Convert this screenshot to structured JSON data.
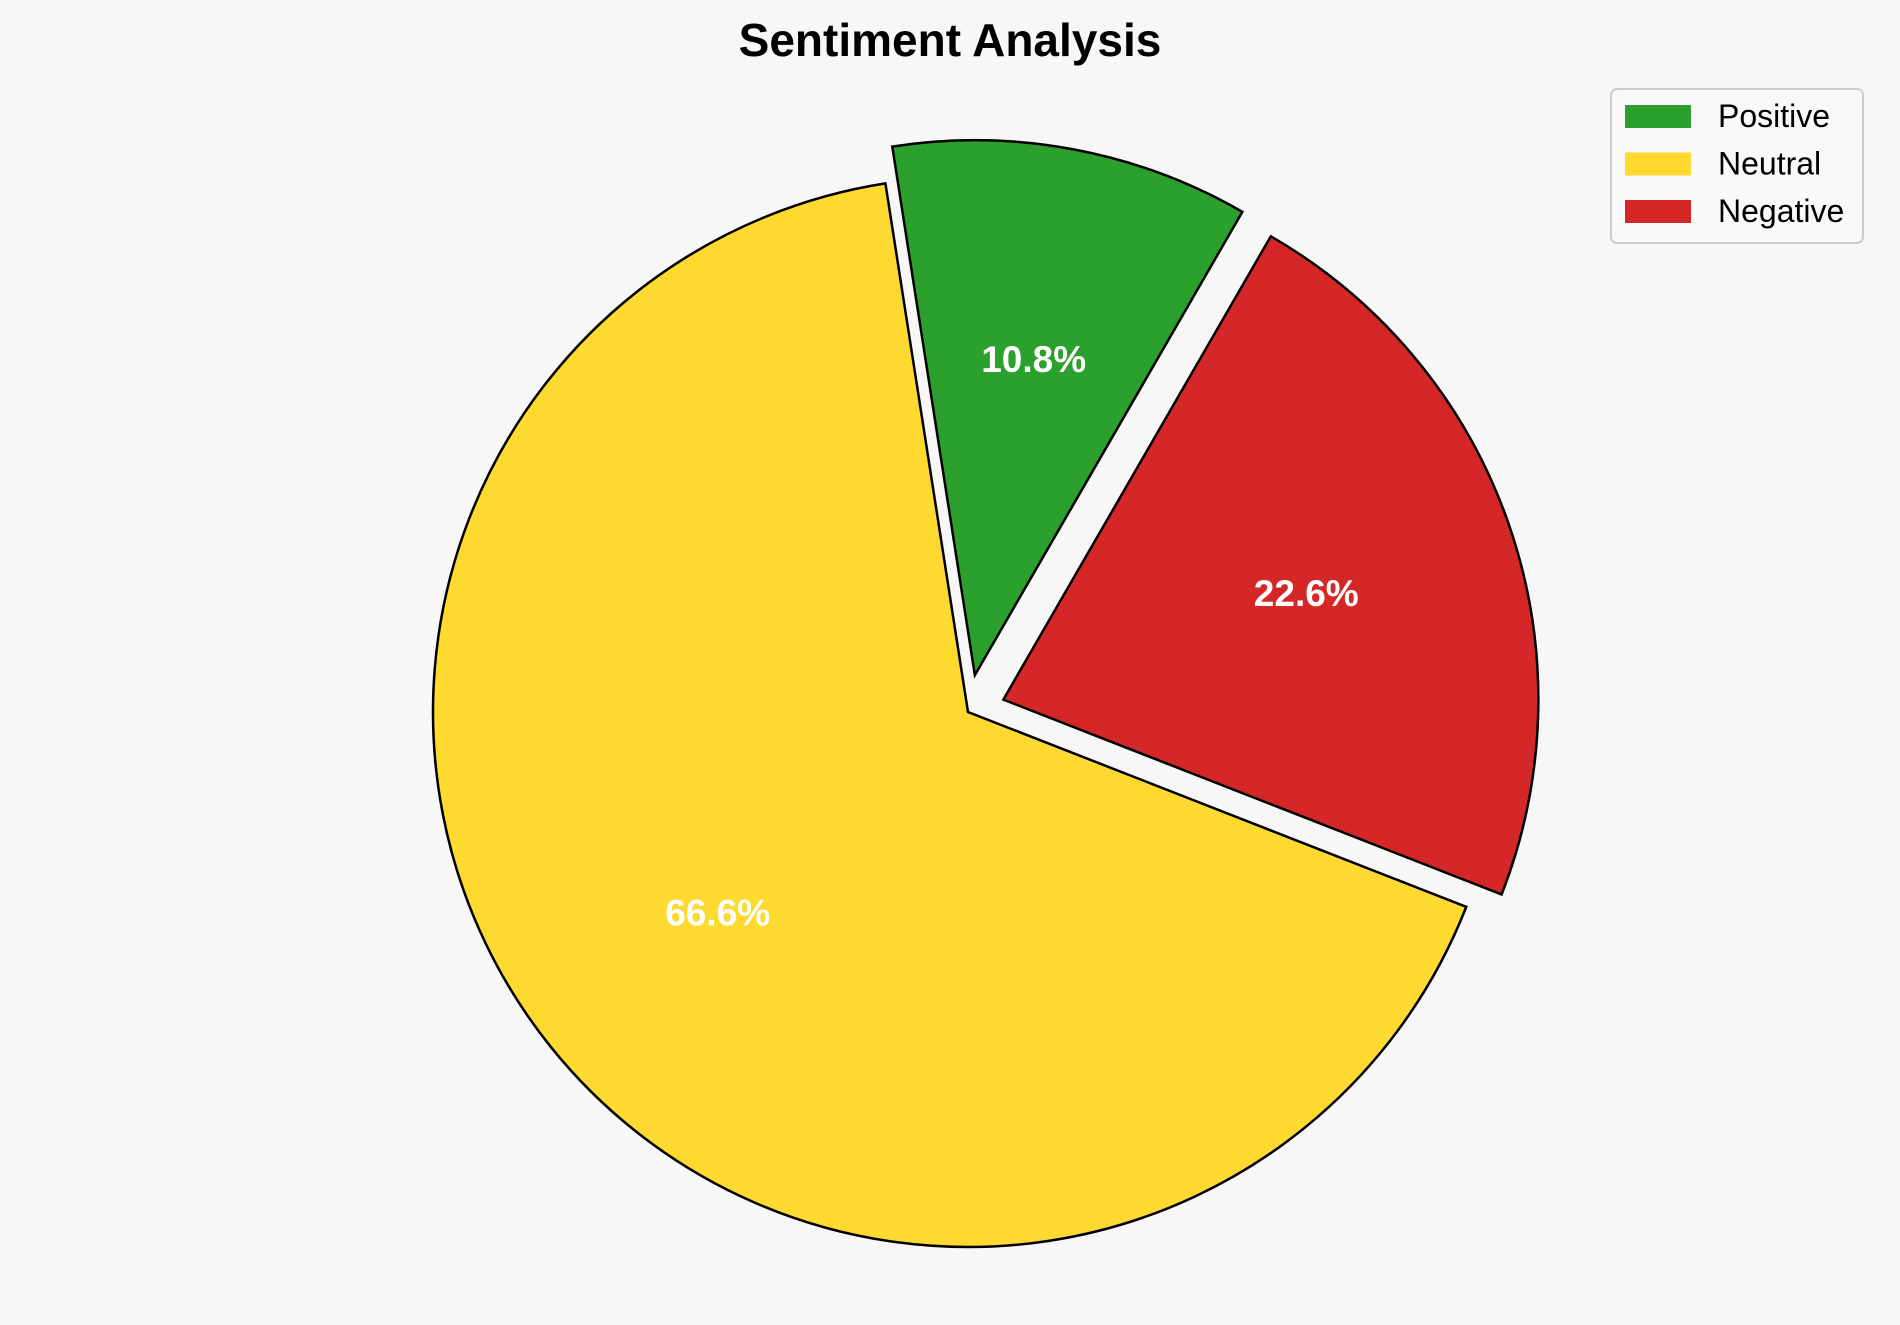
{
  "chart_data": {
    "type": "pie",
    "title": "Sentiment Analysis",
    "categories": [
      "Positive",
      "Neutral",
      "Negative"
    ],
    "values": [
      10.8,
      66.6,
      22.6
    ],
    "labels": [
      "10.8%",
      "66.6%",
      "22.6%"
    ],
    "colors": [
      "#2ca02c",
      "#fed930",
      "#d62728"
    ],
    "exploded": [
      true,
      false,
      true
    ],
    "start_angle_deg": 60,
    "direction": "counterclockwise",
    "legend": {
      "position": "top-right",
      "entries": [
        "Positive",
        "Neutral",
        "Negative"
      ]
    }
  }
}
